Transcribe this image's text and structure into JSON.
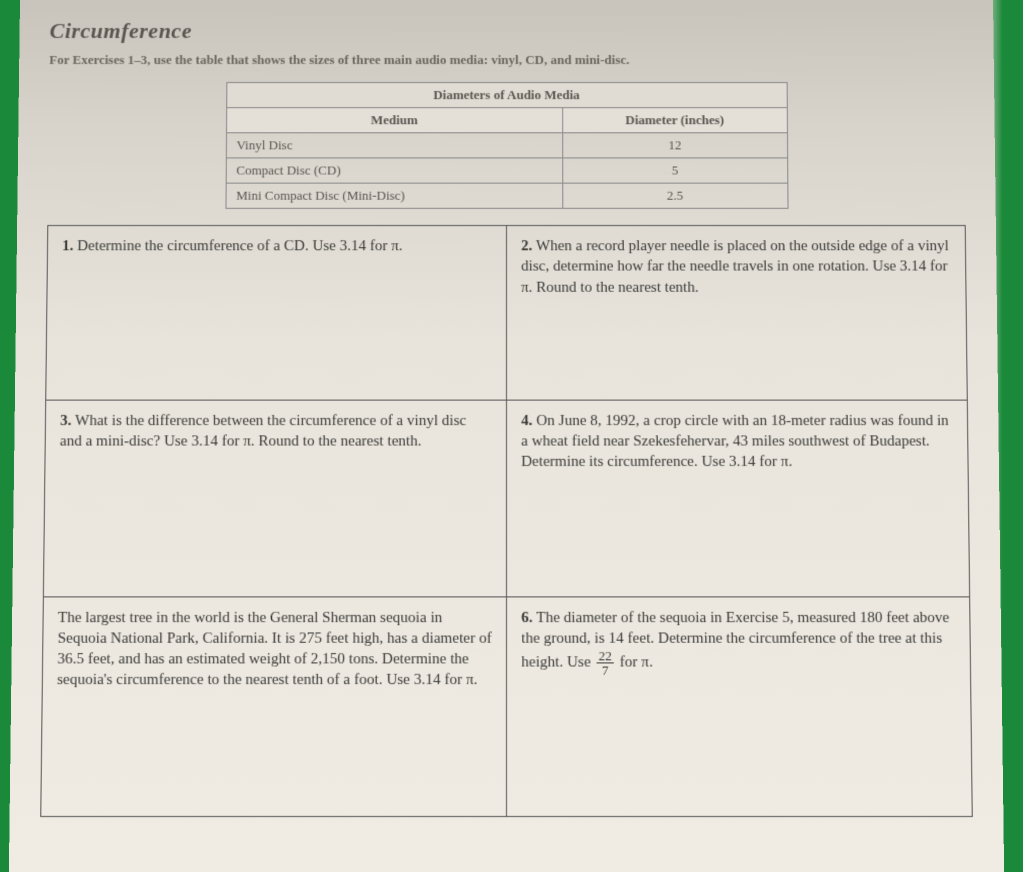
{
  "title": "Circumference",
  "instructions": "For Exercises 1–3, use the table that shows the sizes of three main audio media: vinyl, CD, and mini-disc.",
  "dataTable": {
    "header": "Diameters of Audio Media",
    "col1": "Medium",
    "col2": "Diameter (inches)",
    "rows": [
      {
        "medium": "Vinyl Disc",
        "diameter": "12"
      },
      {
        "medium": "Compact Disc (CD)",
        "diameter": "5"
      },
      {
        "medium": "Mini Compact Disc (Mini-Disc)",
        "diameter": "2.5"
      }
    ]
  },
  "questions": {
    "q1": {
      "num": "1.",
      "text": "Determine the circumference of a CD. Use 3.14 for π."
    },
    "q2": {
      "num": "2.",
      "text": "When a record player needle is placed on the outside edge of a vinyl disc, determine how far the needle travels in one rotation. Use 3.14 for π. Round to the nearest tenth."
    },
    "q3": {
      "num": "3.",
      "text": "What is the difference between the circumference of a vinyl disc and a mini-disc? Use 3.14 for π. Round to the nearest tenth."
    },
    "q4": {
      "num": "4.",
      "text": "On June 8, 1992, a crop circle with an 18-meter radius was found in a wheat field near Szekesfehervar, 43 miles southwest of Budapest. Determine its circumference. Use 3.14 for π."
    },
    "q5": {
      "num": "",
      "text": "The largest tree in the world is the General Sherman sequoia in Sequoia National Park, California. It is 275 feet high, has a diameter of 36.5 feet, and has an estimated weight of 2,150 tons. Determine the sequoia's circumference to the nearest tenth of a foot. Use 3.14 for π."
    },
    "q6": {
      "num": "6.",
      "textA": "The diameter of the sequoia in Exercise 5, measured 180 feet above the ground, is 14 feet. Determine the circumference of the tree at this height. Use ",
      "fracNum": "22",
      "fracDen": "7",
      "textB": " for π."
    }
  }
}
